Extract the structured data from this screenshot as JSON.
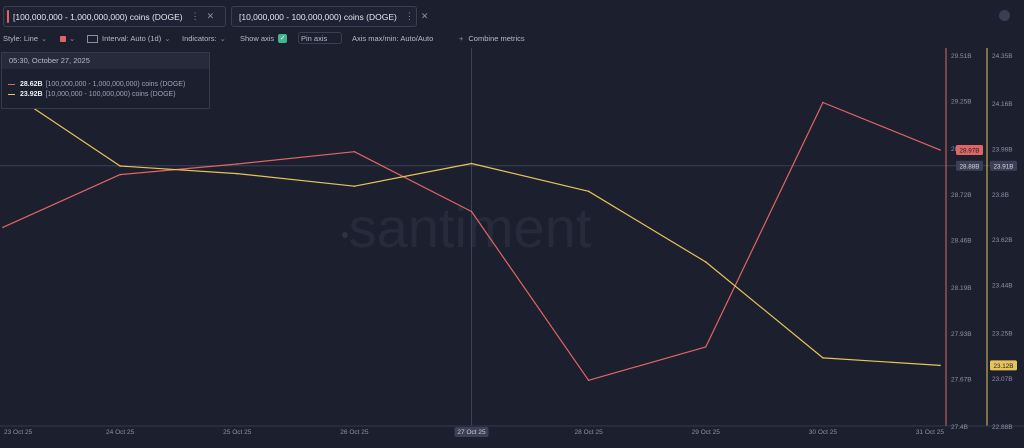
{
  "metrics": [
    {
      "label": "[100,000,000 - 1,000,000,000) coins (DOGE)",
      "color": "#e06565"
    },
    {
      "label": "[10,000,000 - 100,000,000) coins (DOGE)",
      "color": "#e8c35a"
    }
  ],
  "toolbar": {
    "style_label": "Style: Line",
    "interval_label": "Interval: Auto (1d)",
    "indicators_label": "Indicators:",
    "show_axis_label": "Show axis",
    "pin_axis_label": "Pin axis",
    "axis_maxmin_label": "Axis max/min: Auto/Auto",
    "combine_label": "Combine metrics"
  },
  "icons": {
    "more": "more-vertical-icon",
    "close": "close-icon",
    "chevron": "chevron-down-icon",
    "interval": "calendar-icon",
    "plus": "plus-icon",
    "theme": "moon-icon",
    "check": "check-icon"
  },
  "tooltip": {
    "date": "05:30, October 27, 2025",
    "rows": [
      {
        "value": "28.62B",
        "label": "[100,000,000 - 1,000,000,000) coins (DOGE)",
        "color": "#e06565"
      },
      {
        "value": "23.92B",
        "label": "[10,000,000 - 100,000,000) coins (DOGE)",
        "color": "#e8c35a"
      }
    ]
  },
  "watermark": "santiment",
  "chart_data": {
    "type": "line",
    "x": [
      "23 Oct 25",
      "24 Oct 25",
      "25 Oct 25",
      "26 Oct 25",
      "27 Oct 25",
      "28 Oct 25",
      "29 Oct 25",
      "30 Oct 25",
      "31 Oct 25"
    ],
    "highlighted_x": "27 Oct 25",
    "series": [
      {
        "name": "[100,000,000 - 1,000,000,000) coins (DOGE)",
        "color": "#e06565",
        "axis": "left",
        "values": [
          28.53,
          28.83,
          28.89,
          28.96,
          28.62,
          27.66,
          27.85,
          29.24,
          28.97
        ],
        "last_label": "28.97B"
      },
      {
        "name": "[10,000,000 - 100,000,000) coins (DOGE)",
        "color": "#e8c35a",
        "axis": "right",
        "values": [
          24.22,
          23.91,
          23.88,
          23.83,
          23.92,
          23.81,
          23.53,
          23.15,
          23.12
        ],
        "last_label": "23.12B"
      }
    ],
    "y_axes": [
      {
        "id": "left",
        "color": "#e06565",
        "range": [
          27.4,
          29.51
        ],
        "ticks": [
          {
            "v": 29.51,
            "l": "29.51B"
          },
          {
            "v": 29.25,
            "l": "29.25B"
          },
          {
            "v": 28.98,
            "l": "28.98B"
          },
          {
            "v": 28.72,
            "l": "28.72B"
          },
          {
            "v": 28.46,
            "l": "28.46B"
          },
          {
            "v": 28.19,
            "l": "28.19B"
          },
          {
            "v": 27.93,
            "l": "27.93B"
          },
          {
            "v": 27.67,
            "l": "27.67B"
          },
          {
            "v": 27.4,
            "l": "27.4B"
          }
        ]
      },
      {
        "id": "right",
        "color": "#e8c35a",
        "range": [
          22.88,
          24.35
        ],
        "ticks": [
          {
            "v": 24.35,
            "l": "24.35B"
          },
          {
            "v": 24.16,
            "l": "24.16B"
          },
          {
            "v": 23.98,
            "l": "23.98B"
          },
          {
            "v": 23.8,
            "l": "23.8B"
          },
          {
            "v": 23.62,
            "l": "23.62B"
          },
          {
            "v": 23.44,
            "l": "23.44B"
          },
          {
            "v": 23.25,
            "l": "23.25B"
          },
          {
            "v": 23.07,
            "l": "23.07B"
          },
          {
            "v": 22.88,
            "l": "22.88B"
          }
        ]
      }
    ],
    "crosshair": {
      "left_label": "28.88B",
      "right_label": "23.91B",
      "left_value": 28.88
    },
    "grid": false,
    "legend": "none"
  }
}
